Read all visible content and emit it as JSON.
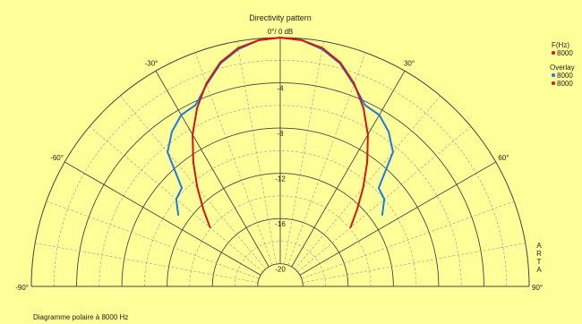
{
  "chart_data": {
    "type": "polar",
    "title": "Directivity pattern",
    "radial_unit": "dB",
    "radial_range": [
      -22,
      0
    ],
    "radial_labels": [
      "0°/ 0 dB",
      "-4",
      "-8",
      "-12",
      "-16",
      "-20"
    ],
    "angle_labels": [
      "-90°",
      "-60°",
      "-30°",
      "30°",
      "60°",
      "90°"
    ],
    "angle_range": [
      -90,
      90
    ],
    "grid": true,
    "legend": {
      "freq_header": "F(Hz)",
      "freq_value": "8000",
      "overlay_header": "Overlay",
      "overlay_values": [
        "8000",
        "8000"
      ]
    },
    "series": [
      {
        "name": "8000",
        "color": "#1a7be0",
        "points": [
          {
            "angle": -55,
            "db": -11.0
          },
          {
            "angle": -50,
            "db": -10.0
          },
          {
            "angle": -45,
            "db": -9.7
          },
          {
            "angle": -40,
            "db": -6.5
          },
          {
            "angle": -35,
            "db": -5.3
          },
          {
            "angle": -30,
            "db": -4.5
          },
          {
            "angle": -25,
            "db": -4.3
          },
          {
            "angle": -20,
            "db": -3.0
          },
          {
            "angle": -15,
            "db": -1.6
          },
          {
            "angle": -10,
            "db": -0.7
          },
          {
            "angle": -5,
            "db": -0.15
          },
          {
            "angle": 0,
            "db": 0.0
          },
          {
            "angle": 5,
            "db": -0.15
          },
          {
            "angle": 10,
            "db": -0.7
          },
          {
            "angle": 15,
            "db": -1.6
          },
          {
            "angle": 20,
            "db": -3.0
          },
          {
            "angle": 25,
            "db": -4.3
          },
          {
            "angle": 30,
            "db": -4.5
          },
          {
            "angle": 35,
            "db": -5.3
          },
          {
            "angle": 40,
            "db": -6.5
          },
          {
            "angle": 45,
            "db": -9.7
          },
          {
            "angle": 50,
            "db": -10.0
          },
          {
            "angle": 55,
            "db": -11.0
          }
        ]
      },
      {
        "name": "8000",
        "color": "#dd1111",
        "points": [
          {
            "angle": -50,
            "db": -13.9
          },
          {
            "angle": -45,
            "db": -12.4
          },
          {
            "angle": -40,
            "db": -10.6
          },
          {
            "angle": -35,
            "db": -8.6
          },
          {
            "angle": -30,
            "db": -6.5
          },
          {
            "angle": -25,
            "db": -4.6
          },
          {
            "angle": -20,
            "db": -2.9
          },
          {
            "angle": -15,
            "db": -1.5
          },
          {
            "angle": -10,
            "db": -0.6
          },
          {
            "angle": -5,
            "db": -0.15
          },
          {
            "angle": 0,
            "db": 0.0
          },
          {
            "angle": 5,
            "db": -0.15
          },
          {
            "angle": 10,
            "db": -0.6
          },
          {
            "angle": 15,
            "db": -1.5
          },
          {
            "angle": 20,
            "db": -2.9
          },
          {
            "angle": 25,
            "db": -4.6
          },
          {
            "angle": 30,
            "db": -6.5
          },
          {
            "angle": 35,
            "db": -8.6
          },
          {
            "angle": 40,
            "db": -10.6
          },
          {
            "angle": 45,
            "db": -12.4
          },
          {
            "angle": 50,
            "db": -13.9
          }
        ]
      }
    ]
  },
  "caption": "Diagramme polaire à 8000 Hz",
  "watermark": [
    "A",
    "R",
    "T",
    "A"
  ]
}
